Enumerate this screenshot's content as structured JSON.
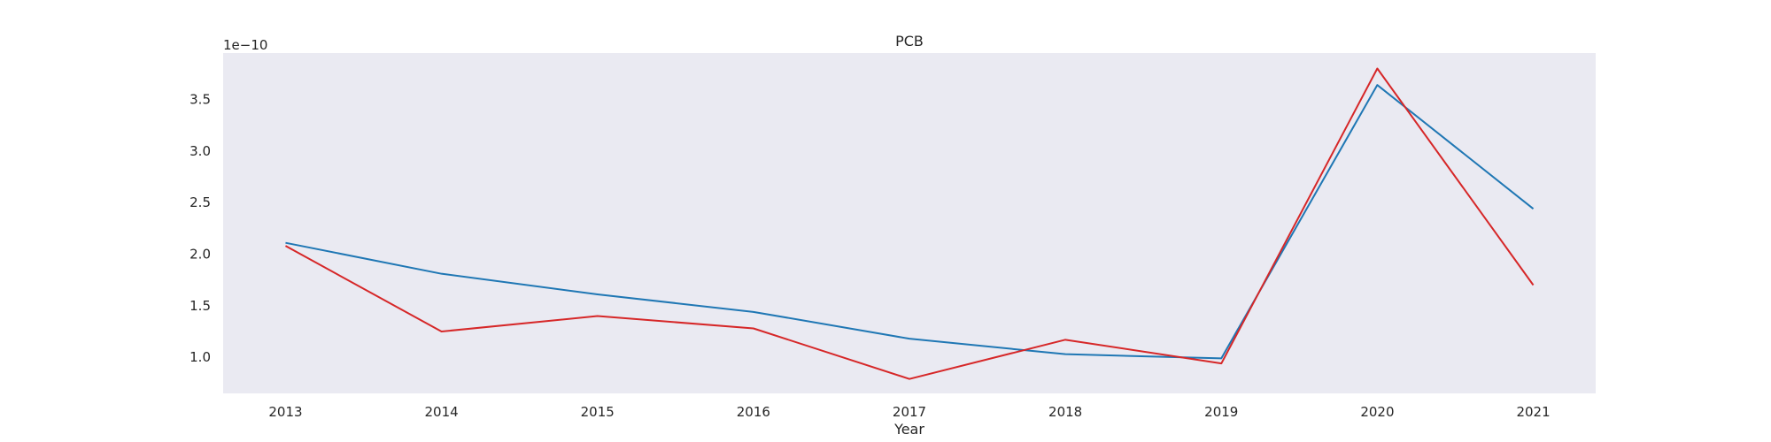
{
  "chart_data": {
    "type": "line",
    "title": "PCB",
    "xlabel": "Year",
    "ylabel": "",
    "y_offset_label": "1e−10",
    "y_multiplier": 1e-10,
    "x": [
      2013,
      2014,
      2015,
      2016,
      2017,
      2018,
      2019,
      2020,
      2021
    ],
    "xlim": [
      2012.6,
      2021.4
    ],
    "ylim": [
      0.65,
      3.95
    ],
    "yticks": [
      1.0,
      1.5,
      2.0,
      2.5,
      3.0,
      3.5
    ],
    "ytick_labels": [
      "1.0",
      "1.5",
      "2.0",
      "2.5",
      "3.0",
      "3.5"
    ],
    "grid": false,
    "background": "#eaeaf2",
    "series": [
      {
        "color": "#1f77b4",
        "values": [
          2.11,
          1.81,
          1.61,
          1.44,
          1.18,
          1.03,
          0.99,
          3.64,
          2.44
        ]
      },
      {
        "color": "#d62728",
        "values": [
          2.08,
          1.25,
          1.4,
          1.28,
          0.79,
          1.17,
          0.94,
          3.8,
          1.7
        ]
      }
    ]
  }
}
